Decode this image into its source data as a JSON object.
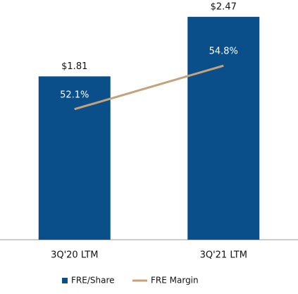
{
  "chart_data": {
    "type": "bar",
    "categories": [
      "3Q'20 LTM",
      "3Q'21 LTM"
    ],
    "series": [
      {
        "name": "FRE/Share",
        "type": "bar",
        "color": "#0b4f8a",
        "values": [
          1.81,
          2.47
        ],
        "value_labels": [
          "$1.81",
          "$2.47"
        ]
      },
      {
        "name": "FRE Margin",
        "type": "line",
        "axis": "y2",
        "color": "#c4a27c",
        "values": [
          52.1,
          54.8
        ],
        "value_labels": [
          "52.1%",
          "54.8%"
        ]
      }
    ],
    "ylim": [
      0,
      2.5
    ],
    "y2lim": [
      44,
      58
    ],
    "legend": "bottom"
  }
}
